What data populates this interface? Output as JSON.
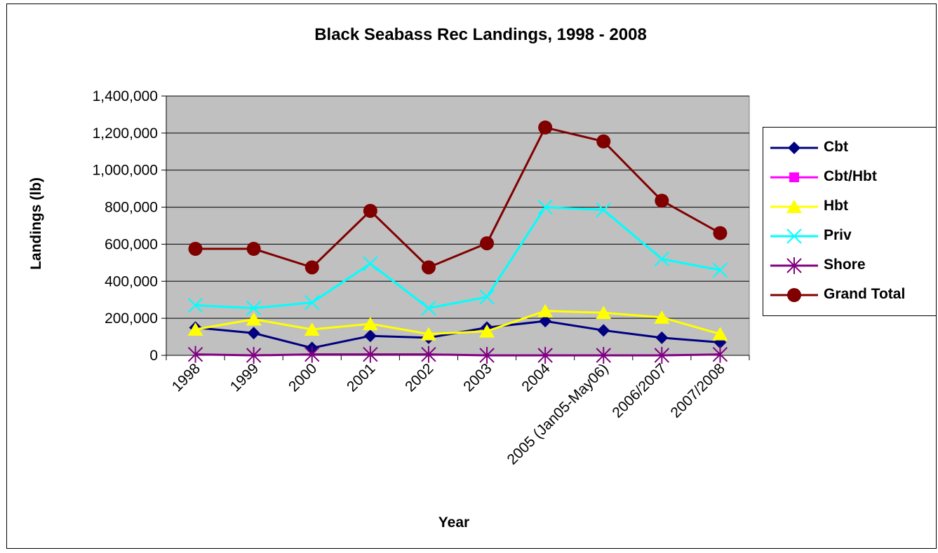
{
  "chart_data": {
    "type": "line",
    "title": "Black Seabass Rec Landings, 1998 - 2008",
    "xlabel": "Year",
    "ylabel": "Landings (lb)",
    "ylim": [
      0,
      1400000
    ],
    "yticks": [
      0,
      200000,
      400000,
      600000,
      800000,
      1000000,
      1200000,
      1400000
    ],
    "ytick_labels": [
      "0",
      "200,000",
      "400,000",
      "600,000",
      "800,000",
      "1,000,000",
      "1,200,000",
      "1,400,000"
    ],
    "grid": "horizontal",
    "plot_background": "#c0c0c0",
    "legend_position": "right",
    "categories": [
      "1998",
      "1999",
      "2000",
      "2001",
      "2002",
      "2003",
      "2004",
      "2005 (Jan05-May06)",
      "2006/2007",
      "2007/2008"
    ],
    "series": [
      {
        "name": "Cbt",
        "color": "#000080",
        "marker": "diamond",
        "values": [
          150000,
          120000,
          40000,
          105000,
          95000,
          150000,
          185000,
          135000,
          95000,
          70000
        ]
      },
      {
        "name": "Cbt/Hbt",
        "color": "#ff00ff",
        "marker": "square",
        "values": [
          null,
          null,
          null,
          null,
          null,
          null,
          null,
          null,
          null,
          null
        ]
      },
      {
        "name": "Hbt",
        "color": "#ffff00",
        "marker": "triangle",
        "values": [
          140000,
          195000,
          140000,
          170000,
          115000,
          130000,
          240000,
          230000,
          205000,
          115000
        ]
      },
      {
        "name": "Priv",
        "color": "#00ffff",
        "marker": "x",
        "values": [
          270000,
          255000,
          285000,
          495000,
          255000,
          315000,
          800000,
          785000,
          520000,
          460000
        ]
      },
      {
        "name": "Shore",
        "color": "#800080",
        "marker": "star",
        "values": [
          5000,
          0,
          5000,
          5000,
          5000,
          0,
          0,
          0,
          0,
          5000
        ]
      },
      {
        "name": "Grand Total",
        "color": "#800000",
        "marker": "circle",
        "values": [
          575000,
          575000,
          475000,
          780000,
          475000,
          605000,
          1230000,
          1155000,
          835000,
          660000
        ]
      }
    ]
  }
}
